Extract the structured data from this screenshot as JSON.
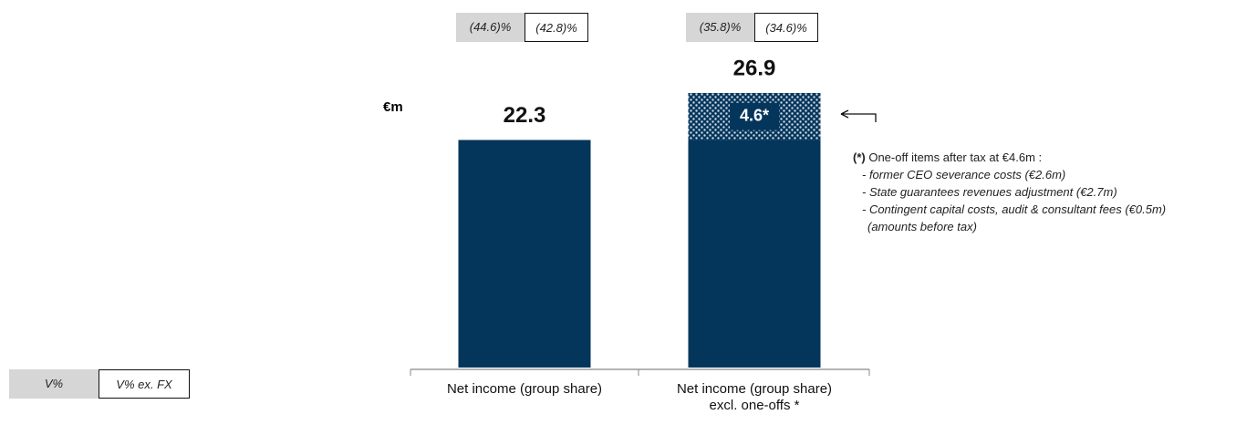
{
  "chart_data": {
    "type": "stacked_bar",
    "unit_label": "€m",
    "categories": [
      "Net income (group share)",
      "Net income (group share) excl. one-offs *"
    ],
    "series": [
      {
        "color": "#04365c",
        "values": [
          22.3,
          22.3
        ]
      },
      {
        "color": "#04365c",
        "pattern": "dots",
        "values": [
          null,
          4.6
        ],
        "value_labels": [
          null,
          "4.6*"
        ]
      }
    ],
    "totals": [
      22.3,
      26.9
    ],
    "variations": [
      {
        "name": "V%",
        "style": "filled",
        "values": [
          -44.6,
          -35.8
        ],
        "value_labels": [
          "(44.6)%",
          "(35.8)%"
        ]
      },
      {
        "name": "V% ex. FX",
        "style": "outlined",
        "values": [
          -42.8,
          -34.6
        ],
        "value_labels": [
          "(42.8)%",
          "(34.6)%"
        ]
      }
    ],
    "note": {
      "marker": "(*)",
      "title": "One-off items after tax at €4.6m :",
      "items": [
        "- former CEO severance costs (€2.6m)",
        "- State guarantees revenues adjustment (€2.7m)",
        "- Contingent capital costs, audit & consultant fees (€0.5m)"
      ],
      "footer": "(amounts before tax)"
    }
  }
}
